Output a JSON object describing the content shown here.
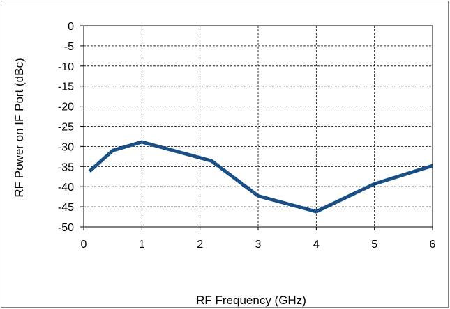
{
  "chart_data": {
    "type": "line",
    "title": "",
    "xlabel": "RF Frequency (GHz)",
    "ylabel": "RF Power on IF Port (dBc)",
    "xlim": [
      0,
      6
    ],
    "ylim": [
      -50,
      0
    ],
    "xticks": [
      "0",
      "1",
      "2",
      "3",
      "4",
      "5",
      "6"
    ],
    "yticks": [
      "0",
      "-5",
      "-10",
      "-15",
      "-20",
      "-25",
      "-30",
      "-35",
      "-40",
      "-45",
      "-50"
    ],
    "grid": true,
    "legend": "none",
    "series": [
      {
        "color": "#1a4f86",
        "x": [
          0.1,
          0.5,
          1.0,
          2.2,
          3.0,
          4.0,
          5.0,
          6.0
        ],
        "y": [
          -36.2,
          -31.0,
          -28.9,
          -33.6,
          -42.3,
          -46.2,
          -39.3,
          -34.8
        ]
      }
    ]
  }
}
